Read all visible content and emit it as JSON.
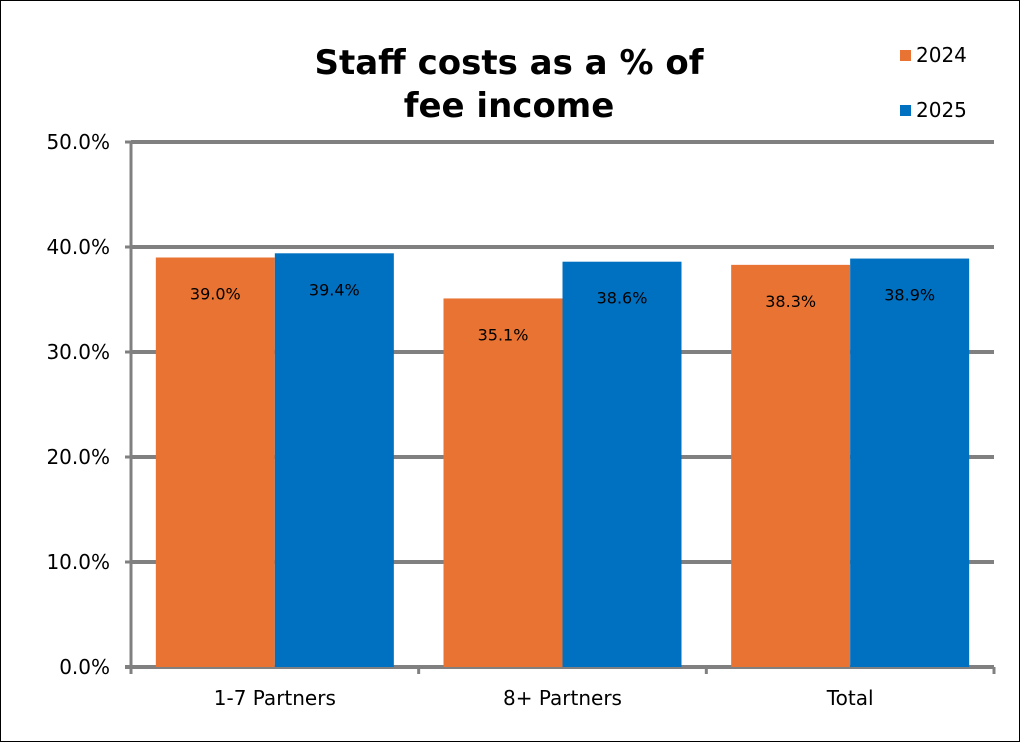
{
  "chart_data": {
    "type": "bar",
    "title_lines": [
      "Staff costs as a % of",
      "fee income"
    ],
    "categories": [
      "1-7 Partners",
      "8+ Partners",
      "Total"
    ],
    "series": [
      {
        "name": "2024",
        "color": "#E87333",
        "values": [
          39.0,
          35.1,
          38.3
        ],
        "labels": [
          "39.0%",
          "35.1%",
          "38.3%"
        ]
      },
      {
        "name": "2025",
        "color": "#0070C0",
        "values": [
          39.4,
          38.6,
          38.9
        ],
        "labels": [
          "39.4%",
          "38.6%",
          "38.9%"
        ]
      }
    ],
    "ylim": [
      0,
      50
    ],
    "yticks": [
      0,
      10,
      20,
      30,
      40,
      50
    ],
    "ytick_labels": [
      "0.0%",
      "10.0%",
      "20.0%",
      "30.0%",
      "40.0%",
      "50.0%"
    ],
    "grid": true,
    "gridline_color": "#808080",
    "legend_position": "top-right",
    "xlabel": "",
    "ylabel": ""
  }
}
